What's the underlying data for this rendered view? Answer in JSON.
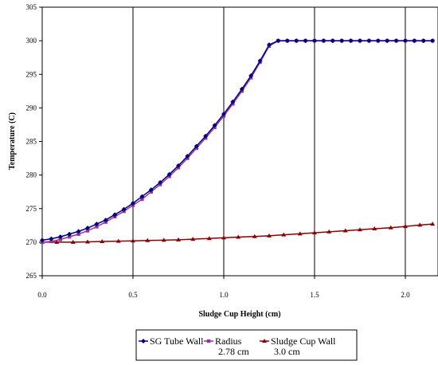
{
  "chart_data": {
    "type": "line",
    "title": "",
    "xlabel": "Sludge Cup Height (cm)",
    "ylabel": "Temperature (C)",
    "xlim": [
      0,
      2.18
    ],
    "ylim": [
      265,
      305
    ],
    "x_ticks": [
      "0.0",
      "0.5",
      "1.0",
      "1.5",
      "2.0"
    ],
    "x_tick_values": [
      0,
      0.5,
      1.0,
      1.5,
      2.0
    ],
    "y_ticks": [
      "265",
      "270",
      "275",
      "280",
      "285",
      "290",
      "295",
      "300",
      "305"
    ],
    "y_tick_values": [
      265,
      270,
      275,
      280,
      285,
      290,
      295,
      300,
      305
    ],
    "grid": "vertical",
    "legend_position": "bottom",
    "series": [
      {
        "name": "SG Tube Wall",
        "color": "#000080",
        "marker": "diamond",
        "x": [
          0.0,
          0.05,
          0.1,
          0.15,
          0.2,
          0.25,
          0.3,
          0.35,
          0.4,
          0.45,
          0.5,
          0.55,
          0.6,
          0.65,
          0.7,
          0.75,
          0.8,
          0.85,
          0.9,
          0.95,
          1.0,
          1.05,
          1.1,
          1.15,
          1.2,
          1.25,
          1.3,
          1.35,
          1.4,
          1.45,
          1.5,
          1.55,
          1.6,
          1.65,
          1.7,
          1.75,
          1.8,
          1.85,
          1.9,
          1.95,
          2.0,
          2.05,
          2.1,
          2.15
        ],
        "y": [
          270.3,
          270.5,
          270.8,
          271.2,
          271.6,
          272.1,
          272.7,
          273.3,
          274.1,
          274.9,
          275.8,
          276.8,
          277.8,
          278.9,
          280.1,
          281.4,
          282.8,
          284.3,
          285.8,
          287.4,
          289.1,
          290.9,
          292.8,
          294.8,
          297.0,
          299.4,
          300.0,
          300.0,
          300.0,
          300.0,
          300.0,
          300.0,
          300.0,
          300.0,
          300.0,
          300.0,
          300.0,
          300.0,
          300.0,
          300.0,
          300.0,
          300.0,
          300.0,
          300.0
        ]
      },
      {
        "name": "Radius\n2.78 cm",
        "color": "#993399",
        "marker": "square",
        "x": [
          0.0,
          0.05,
          0.1,
          0.15,
          0.2,
          0.25,
          0.3,
          0.35,
          0.4,
          0.45,
          0.5,
          0.55,
          0.6,
          0.65,
          0.7,
          0.75,
          0.8,
          0.85,
          0.9,
          0.95,
          1.0,
          1.05,
          1.1,
          1.15,
          1.2,
          1.25,
          1.3,
          1.35,
          1.4,
          1.45,
          1.5,
          1.55,
          1.6,
          1.65,
          1.7,
          1.75,
          1.8,
          1.85,
          1.9,
          1.95,
          2.0,
          2.05,
          2.1,
          2.15
        ],
        "y": [
          270.0,
          270.1,
          270.4,
          270.8,
          271.2,
          271.7,
          272.3,
          273.0,
          273.8,
          274.6,
          275.5,
          276.4,
          277.5,
          278.6,
          279.8,
          281.1,
          282.5,
          284.0,
          285.5,
          287.1,
          288.8,
          290.6,
          292.5,
          294.5,
          296.8,
          299.2,
          300.0,
          300.0,
          300.0,
          300.0,
          300.0,
          300.0,
          300.0,
          300.0,
          300.0,
          300.0,
          300.0,
          300.0,
          300.0,
          300.0,
          300.0,
          300.0,
          300.0,
          300.0
        ]
      },
      {
        "name": "Sludge Cup Wall\n3.0 cm",
        "color": "#8B0000",
        "marker": "triangle",
        "x": [
          0.0,
          0.08,
          0.17,
          0.25,
          0.33,
          0.42,
          0.5,
          0.58,
          0.67,
          0.75,
          0.83,
          0.92,
          1.0,
          1.08,
          1.17,
          1.25,
          1.33,
          1.42,
          1.5,
          1.58,
          1.67,
          1.75,
          1.83,
          1.92,
          2.0,
          2.08,
          2.15
        ],
        "y": [
          270.0,
          270.0,
          270.0,
          270.05,
          270.1,
          270.15,
          270.2,
          270.25,
          270.3,
          270.35,
          270.45,
          270.55,
          270.65,
          270.75,
          270.85,
          270.95,
          271.1,
          271.25,
          271.4,
          271.55,
          271.7,
          271.85,
          272.0,
          272.15,
          272.35,
          272.55,
          272.7
        ]
      }
    ]
  }
}
